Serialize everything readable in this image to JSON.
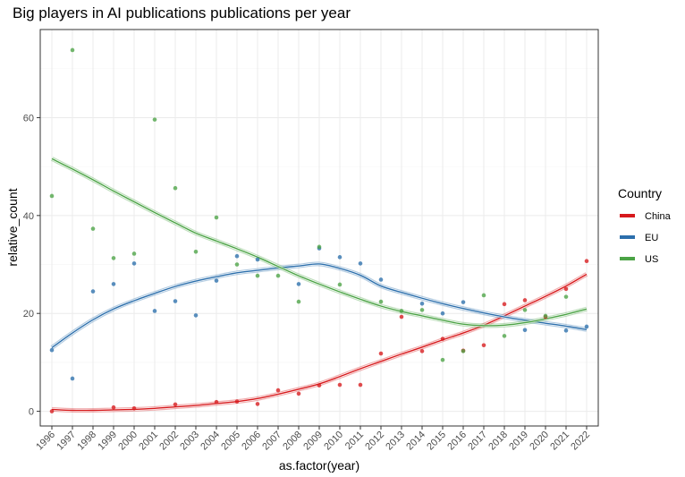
{
  "chart_data": {
    "type": "scatter",
    "title": "Big players in AI publications publications per year",
    "xlabel": "as.factor(year)",
    "ylabel": "relative_count",
    "categories": [
      "1996",
      "1997",
      "1998",
      "1999",
      "2000",
      "2001",
      "2002",
      "2003",
      "2004",
      "2005",
      "2006",
      "2007",
      "2008",
      "2009",
      "2010",
      "2011",
      "2012",
      "2013",
      "2014",
      "2015",
      "2016",
      "2017",
      "2018",
      "2019",
      "2020",
      "2021",
      "2022"
    ],
    "ylim": [
      -3,
      78
    ],
    "yticks": [
      "0",
      "20",
      "40",
      "60"
    ],
    "grid": true,
    "legend": {
      "title": "Country",
      "position": "right",
      "entries": [
        "China",
        "EU",
        "US"
      ]
    },
    "series": [
      {
        "name": "China",
        "color": "#d7191c",
        "points": [
          0.0,
          null,
          null,
          0.8,
          0.6,
          null,
          1.4,
          null,
          1.9,
          2.0,
          1.5,
          4.3,
          3.6,
          5.3,
          5.4,
          5.4,
          11.8,
          19.3,
          12.3,
          14.8,
          12.4,
          13.5,
          21.9,
          22.7,
          19.3,
          25.0,
          30.7
        ],
        "trend": [
          0.4,
          0.2,
          0.2,
          0.3,
          0.4,
          0.6,
          0.9,
          1.2,
          1.6,
          2.0,
          2.6,
          3.5,
          4.5,
          5.6,
          7.1,
          8.7,
          10.2,
          11.7,
          13.1,
          14.6,
          16.0,
          17.6,
          19.5,
          21.5,
          23.5,
          25.6,
          28.0
        ]
      },
      {
        "name": "EU",
        "color": "#2c6fac",
        "points": [
          12.5,
          6.7,
          24.5,
          26.0,
          30.2,
          20.5,
          22.5,
          19.6,
          26.7,
          31.7,
          31.0,
          null,
          26.0,
          33.3,
          31.5,
          30.2,
          26.9,
          null,
          22.0,
          20.0,
          22.3,
          null,
          null,
          16.6,
          null,
          16.5,
          17.3
        ],
        "trend": [
          13.0,
          16.0,
          18.7,
          20.9,
          22.6,
          24.1,
          25.5,
          26.6,
          27.5,
          28.3,
          28.8,
          29.3,
          29.7,
          30.1,
          29.2,
          27.8,
          25.6,
          24.3,
          23.1,
          22.0,
          21.0,
          20.1,
          19.3,
          18.6,
          18.0,
          17.4,
          16.7
        ]
      },
      {
        "name": "US",
        "color": "#4ba345",
        "points": [
          44.0,
          73.8,
          37.3,
          31.3,
          32.2,
          59.6,
          45.6,
          32.6,
          39.6,
          30.0,
          27.7,
          27.7,
          22.4,
          33.6,
          25.9,
          null,
          22.4,
          20.5,
          20.7,
          10.5,
          12.3,
          23.7,
          15.4,
          20.7,
          19.5,
          23.4,
          null
        ],
        "trend": [
          51.6,
          49.5,
          47.3,
          45.0,
          42.8,
          40.6,
          38.5,
          36.4,
          34.8,
          33.2,
          31.5,
          29.6,
          27.7,
          26.0,
          24.4,
          22.9,
          21.5,
          20.4,
          19.5,
          18.6,
          17.8,
          17.5,
          17.6,
          18.1,
          18.9,
          19.8,
          20.9
        ]
      }
    ]
  }
}
